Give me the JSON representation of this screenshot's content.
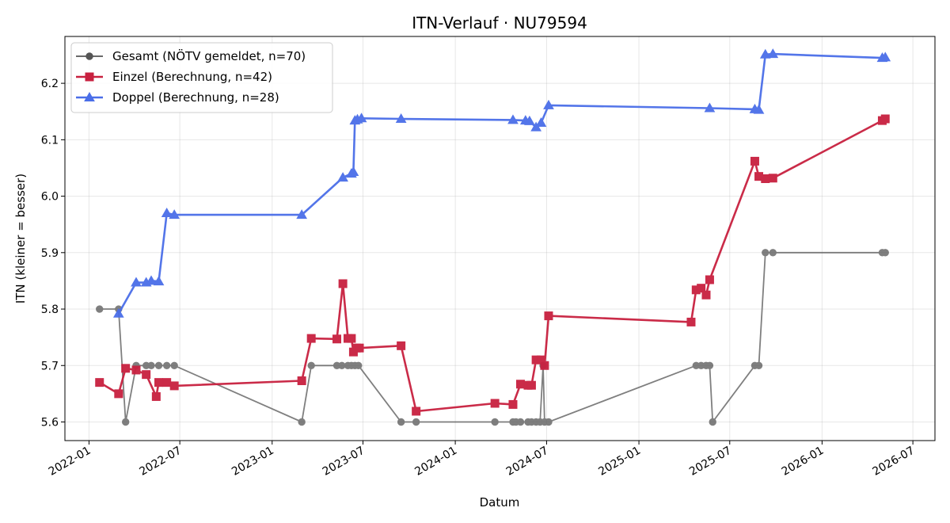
{
  "chart_data": {
    "type": "line",
    "title": "ITN-Verlauf · NU79594",
    "xlabel": "Datum",
    "ylabel": "ITN  (kleiner = besser)",
    "x_type": "date",
    "xlim": [
      "2021-11-14",
      "2026-08-14"
    ],
    "ylim": [
      5.567,
      6.283
    ],
    "x_ticks": [
      "2022-01",
      "2022-07",
      "2023-01",
      "2023-07",
      "2024-01",
      "2024-07",
      "2025-01",
      "2025-07",
      "2026-01",
      "2026-07"
    ],
    "y_ticks": [
      5.6,
      5.7,
      5.8,
      5.9,
      6.0,
      6.1,
      6.2
    ],
    "grid": true,
    "legend_position": "top-left",
    "series": [
      {
        "name": "Gesamt (NÖTV gemeldet, n=70)",
        "color": "#555555",
        "marker": "circle",
        "points": [
          [
            "2022-01-22",
            5.8
          ],
          [
            "2022-03-01",
            5.8
          ],
          [
            "2022-03-15",
            5.6
          ],
          [
            "2022-04-05",
            5.7
          ],
          [
            "2022-04-25",
            5.7
          ],
          [
            "2022-05-05",
            5.7
          ],
          [
            "2022-05-20",
            5.7
          ],
          [
            "2022-06-05",
            5.7
          ],
          [
            "2022-06-20",
            5.7
          ],
          [
            "2023-03-01",
            5.6
          ],
          [
            "2023-03-20",
            5.7
          ],
          [
            "2023-05-10",
            5.7
          ],
          [
            "2023-05-20",
            5.7
          ],
          [
            "2023-06-01",
            5.7
          ],
          [
            "2023-06-08",
            5.7
          ],
          [
            "2023-06-15",
            5.7
          ],
          [
            "2023-06-22",
            5.7
          ],
          [
            "2023-09-15",
            5.6
          ],
          [
            "2023-10-15",
            5.6
          ],
          [
            "2024-03-20",
            5.6
          ],
          [
            "2024-04-25",
            5.6
          ],
          [
            "2024-05-01",
            5.6
          ],
          [
            "2024-05-10",
            5.6
          ],
          [
            "2024-05-25",
            5.6
          ],
          [
            "2024-06-01",
            5.6
          ],
          [
            "2024-06-10",
            5.6
          ],
          [
            "2024-06-18",
            5.6
          ],
          [
            "2024-06-24",
            5.7
          ],
          [
            "2024-06-27",
            5.6
          ],
          [
            "2024-07-05",
            5.6
          ],
          [
            "2025-04-25",
            5.7
          ],
          [
            "2025-05-05",
            5.7
          ],
          [
            "2025-05-15",
            5.7
          ],
          [
            "2025-05-22",
            5.7
          ],
          [
            "2025-05-28",
            5.6
          ],
          [
            "2025-08-20",
            5.7
          ],
          [
            "2025-08-28",
            5.7
          ],
          [
            "2025-09-10",
            5.9
          ],
          [
            "2025-09-25",
            5.9
          ],
          [
            "2026-05-01",
            5.9
          ],
          [
            "2026-05-07",
            5.9
          ]
        ]
      },
      {
        "name": "Einzel (Berechnung, n=42)",
        "color": "#c8203f",
        "marker": "square",
        "points": [
          [
            "2022-01-22",
            5.67
          ],
          [
            "2022-03-01",
            5.65
          ],
          [
            "2022-03-15",
            5.695
          ],
          [
            "2022-04-05",
            5.692
          ],
          [
            "2022-04-25",
            5.684
          ],
          [
            "2022-05-15",
            5.645
          ],
          [
            "2022-05-20",
            5.67
          ],
          [
            "2022-06-05",
            5.67
          ],
          [
            "2022-06-20",
            5.664
          ],
          [
            "2023-03-01",
            5.673
          ],
          [
            "2023-03-20",
            5.748
          ],
          [
            "2023-05-10",
            5.747
          ],
          [
            "2023-05-22",
            5.845
          ],
          [
            "2023-06-01",
            5.748
          ],
          [
            "2023-06-08",
            5.748
          ],
          [
            "2023-06-12",
            5.724
          ],
          [
            "2023-06-18",
            5.731
          ],
          [
            "2023-06-24",
            5.731
          ],
          [
            "2023-09-15",
            5.735
          ],
          [
            "2023-10-15",
            5.619
          ],
          [
            "2024-03-20",
            5.633
          ],
          [
            "2024-04-25",
            5.631
          ],
          [
            "2024-05-10",
            5.667
          ],
          [
            "2024-05-25",
            5.665
          ],
          [
            "2024-06-01",
            5.665
          ],
          [
            "2024-06-10",
            5.71
          ],
          [
            "2024-06-20",
            5.71
          ],
          [
            "2024-06-27",
            5.7
          ],
          [
            "2024-07-05",
            5.788
          ],
          [
            "2025-04-15",
            5.777
          ],
          [
            "2025-04-25",
            5.834
          ],
          [
            "2025-05-05",
            5.837
          ],
          [
            "2025-05-15",
            5.825
          ],
          [
            "2025-05-22",
            5.852
          ],
          [
            "2025-08-20",
            6.062
          ],
          [
            "2025-08-28",
            6.035
          ],
          [
            "2025-09-10",
            6.031
          ],
          [
            "2025-09-25",
            6.032
          ],
          [
            "2026-05-01",
            6.134
          ],
          [
            "2026-05-07",
            6.137
          ]
        ]
      },
      {
        "name": "Doppel (Berechnung, n=28)",
        "color": "#4a6ee8",
        "marker": "triangle",
        "points": [
          [
            "2022-03-01",
            5.792
          ],
          [
            "2022-04-05",
            5.847
          ],
          [
            "2022-04-25",
            5.847
          ],
          [
            "2022-05-05",
            5.85
          ],
          [
            "2022-05-20",
            5.849
          ],
          [
            "2022-06-05",
            5.97
          ],
          [
            "2022-06-20",
            5.967
          ],
          [
            "2023-03-01",
            5.967
          ],
          [
            "2023-05-22",
            6.033
          ],
          [
            "2023-06-08",
            6.04
          ],
          [
            "2023-06-12",
            6.043
          ],
          [
            "2023-06-15",
            6.134
          ],
          [
            "2023-06-20",
            6.136
          ],
          [
            "2023-06-28",
            6.138
          ],
          [
            "2023-09-15",
            6.137
          ],
          [
            "2024-04-25",
            6.135
          ],
          [
            "2024-05-20",
            6.134
          ],
          [
            "2024-05-28",
            6.133
          ],
          [
            "2024-06-10",
            6.122
          ],
          [
            "2024-06-20",
            6.13
          ],
          [
            "2024-07-05",
            6.161
          ],
          [
            "2025-05-22",
            6.156
          ],
          [
            "2025-08-20",
            6.154
          ],
          [
            "2025-08-28",
            6.153
          ],
          [
            "2025-09-10",
            6.251
          ],
          [
            "2025-09-25",
            6.252
          ],
          [
            "2026-05-01",
            6.245
          ],
          [
            "2026-05-07",
            6.246
          ]
        ]
      }
    ]
  }
}
